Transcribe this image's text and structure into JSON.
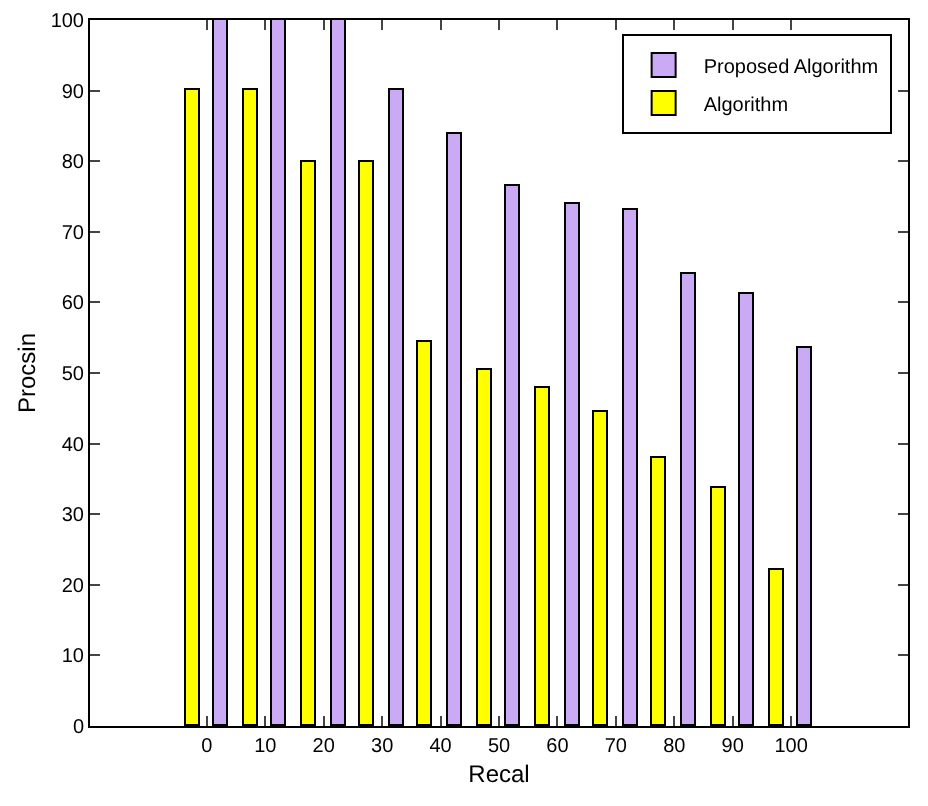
{
  "chart_data": {
    "type": "bar",
    "xlabel": "Recal",
    "ylabel": "Procsin",
    "x": [
      0,
      10,
      20,
      30,
      40,
      50,
      60,
      70,
      80,
      90,
      100
    ],
    "series": [
      {
        "name": "Algorithm",
        "color": "#ffff00",
        "values": [
          90,
          90,
          80,
          79.8,
          54.5,
          50.5,
          48,
          44.5,
          38,
          33.7,
          22
        ]
      },
      {
        "name": "Proposed Algorithm",
        "color": "#cbaaf5",
        "values": [
          100,
          100,
          100,
          90,
          83.8,
          76.5,
          74,
          73,
          64,
          61.3,
          53.5
        ]
      }
    ],
    "xlim": [
      -20,
      120
    ],
    "xticks": [
      0,
      10,
      20,
      30,
      40,
      50,
      60,
      70,
      80,
      90,
      100
    ],
    "ylim": [
      0,
      100
    ],
    "yticks": [
      0,
      10,
      20,
      30,
      40,
      50,
      60,
      70,
      80,
      90,
      100
    ],
    "legend": "top right"
  }
}
